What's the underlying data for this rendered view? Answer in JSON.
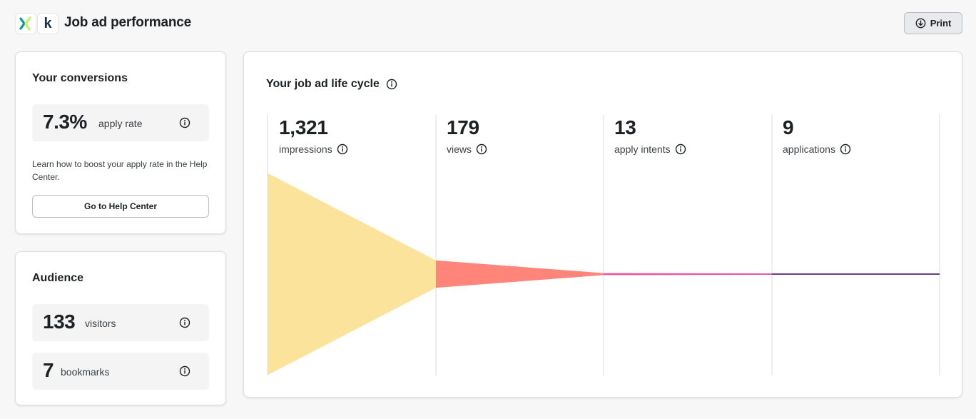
{
  "header": {
    "title": "Job ad performance",
    "print_label": "Print",
    "logo_k_text": "k"
  },
  "conversions": {
    "title": "Your conversions",
    "apply_rate_value": "7.3%",
    "apply_rate_label": "apply rate",
    "help_text": "Learn how to boost your apply rate in the Help Center.",
    "help_button_label": "Go to Help Center"
  },
  "audience": {
    "title": "Audience",
    "visitors_value": "133",
    "visitors_label": "visitors",
    "bookmarks_value": "7",
    "bookmarks_label": "bookmarks"
  },
  "lifecycle": {
    "title": "Your job ad life cycle",
    "stages": [
      {
        "value": "1,321",
        "label": "impressions",
        "count": 1321
      },
      {
        "value": "179",
        "label": "views",
        "count": 179
      },
      {
        "value": "13",
        "label": "apply intents",
        "count": 13
      },
      {
        "value": "9",
        "label": "applications",
        "count": 9
      }
    ],
    "colors": {
      "impressions": "#fbe39b",
      "views": "#ff857a",
      "apply_intents": "#e45c9e",
      "applications": "#6b3d8f"
    }
  },
  "icons": {
    "info": "info-icon",
    "print": "download-circle-icon",
    "xing_logo": "xing-logo-icon",
    "kununu_logo": "kununu-logo-icon"
  }
}
